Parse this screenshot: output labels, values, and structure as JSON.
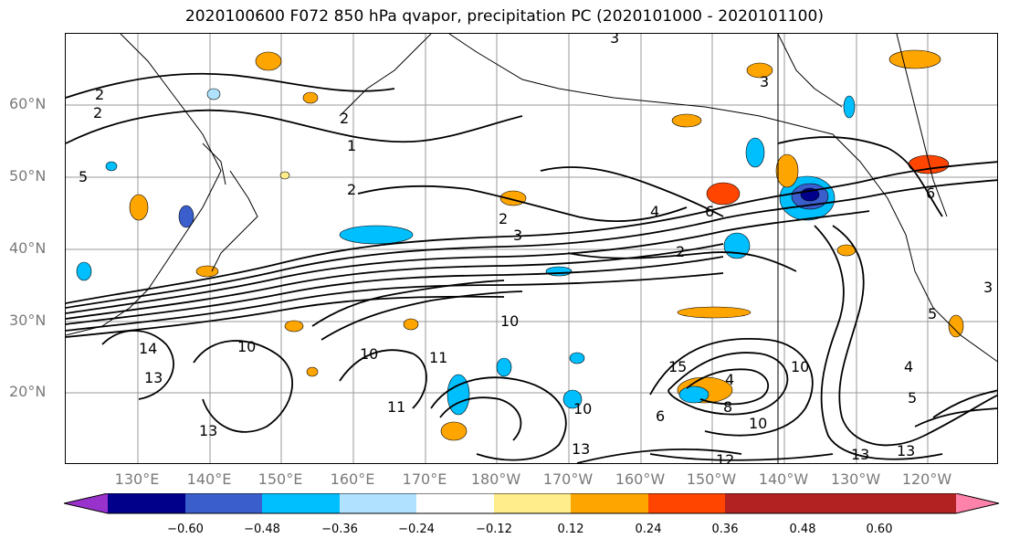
{
  "title": "2020100600 F072 850 hPa qvapor, precipitation PC (2020101000 - 2020101100)",
  "lat_labels": [
    "60°N",
    "50°N",
    "40°N",
    "30°N",
    "20°N"
  ],
  "lon_labels": [
    "130°E",
    "140°E",
    "150°E",
    "160°E",
    "170°E",
    "180°W",
    "170°W",
    "160°W",
    "150°W",
    "140°W",
    "130°W",
    "120°W"
  ],
  "colorbar": {
    "ticks": [
      "−0.60",
      "−0.48",
      "−0.36",
      "−0.24",
      "−0.12",
      "0.12",
      "0.24",
      "0.36",
      "0.48",
      "0.60"
    ],
    "colors": [
      "#9932cc",
      "#00008b",
      "#3a5fcd",
      "#00bfff",
      "#b0e2ff",
      "#ffffff",
      "#ffec8b",
      "#ffa500",
      "#ff4500",
      "#b22222",
      "#ff82ab"
    ]
  },
  "contour_labels": [
    "2",
    "2",
    "2",
    "1",
    "3",
    "5",
    "2",
    "2",
    "3",
    "6",
    "2",
    "4",
    "3",
    "10",
    "14",
    "13",
    "10",
    "11",
    "10",
    "11",
    "10",
    "13",
    "13",
    "10",
    "15",
    "4",
    "6",
    "8",
    "10",
    "12",
    "13",
    "13",
    "5",
    "4",
    "3",
    "5",
    "6"
  ]
}
